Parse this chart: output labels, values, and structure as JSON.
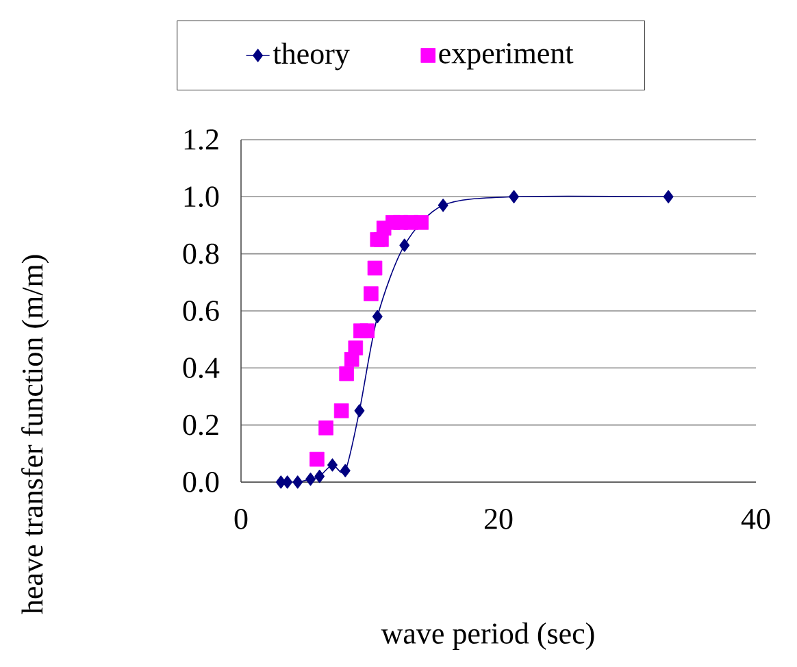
{
  "chart_data": {
    "type": "line",
    "xlabel": "wave period (sec)",
    "ylabel": "heave transfer function (m/m)",
    "xlim": [
      0,
      40
    ],
    "xticks": [
      0,
      20,
      40
    ],
    "ylim": [
      0,
      1.2
    ],
    "yticks": [
      {
        "value": 0,
        "label": "0.0"
      },
      {
        "value": 0.2,
        "label": "0.2"
      },
      {
        "value": 0.4,
        "label": "0.4"
      },
      {
        "value": 0.6,
        "label": "0.6"
      },
      {
        "value": 0.8,
        "label": "0.8"
      },
      {
        "value": 1.0,
        "label": "1.0"
      },
      {
        "value": 1.2,
        "label": "1.2"
      }
    ],
    "grid": "y",
    "legend": "top",
    "series": [
      {
        "name": "theory",
        "marker": "diamond",
        "color": "#000080",
        "x": [
          3.1,
          3.6,
          4.4,
          5.4,
          6.1,
          7.1,
          8.1,
          9.2,
          10.6,
          12.7,
          15.7,
          21.2,
          33.2
        ],
        "values": [
          0.0,
          0.0,
          0.0,
          0.01,
          0.02,
          0.06,
          0.04,
          0.25,
          0.58,
          0.83,
          0.97,
          1.0,
          1.0
        ]
      },
      {
        "name": "experiment",
        "type": "scatter",
        "marker": "square",
        "color": "#ff00ff",
        "x": [
          5.9,
          6.6,
          7.8,
          8.2,
          8.6,
          8.9,
          9.3,
          9.8,
          10.1,
          10.4,
          10.6,
          10.9,
          11.1,
          11.8,
          12.4,
          13.2,
          14.0
        ],
        "values": [
          0.08,
          0.19,
          0.25,
          0.38,
          0.43,
          0.47,
          0.53,
          0.53,
          0.66,
          0.75,
          0.85,
          0.85,
          0.89,
          0.91,
          0.91,
          0.91,
          0.91
        ]
      }
    ]
  }
}
